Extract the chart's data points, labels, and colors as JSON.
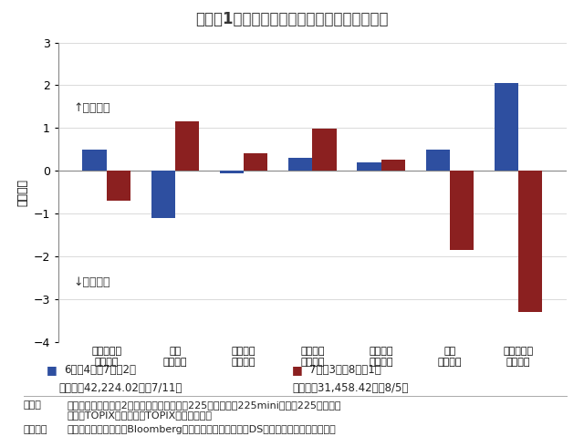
{
  "title_display": "【図表1：主な投資主体別の日本株売買動向】",
  "ylabel": "（兆円）",
  "categories": [
    "海外投資家\n（現物）",
    "個人\n（現物）",
    "投資信託\n（現物）",
    "事業法人\n（現物）",
    "信託銀行\n（現物）",
    "自己\n（現物）",
    "海外投資家\n（先物）"
  ],
  "series1_values": [
    0.5,
    -1.1,
    -0.05,
    0.3,
    0.2,
    0.5,
    2.05
  ],
  "series2_values": [
    -0.7,
    1.15,
    0.4,
    0.98,
    0.27,
    -1.85,
    -3.3
  ],
  "series1_color": "#2E4FA0",
  "series2_color": "#8B2020",
  "ylim": [
    -4,
    3
  ],
  "yticks": [
    -4,
    -3,
    -2,
    -1,
    0,
    1,
    2,
    3
  ],
  "legend1_label": "6月第4週～7月第2週",
  "legend2_label": "7月第3週～8月第1週",
  "legend1_sub": "日経平均42,224.02円（7/11）",
  "legend2_sub": "日経平均31,458.42円（8/5）",
  "annotation_buy": "↑買い越し",
  "annotation_sell": "↓売り越し",
  "note1_prefix": "（注）",
  "note1_text": "現物は東京・名古屋2市場合計。先物は日経225先物、日経225mini、日経225マイクロ\n先物、TOPIX先物、ミニTOPIX先物の合計。",
  "note2_prefix": "（出所）",
  "note2_text": "日本取引所グループ、Bloombergのデータを基に三井住友DSアセットマネジメント作成",
  "bg_color": "#FFFFFF",
  "bar_width": 0.35
}
